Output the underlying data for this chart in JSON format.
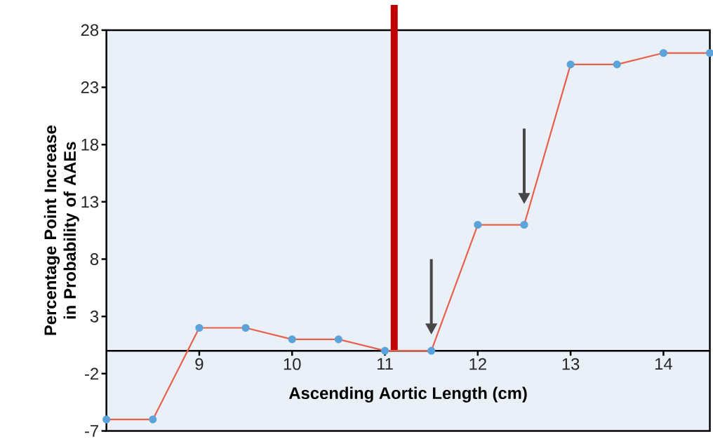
{
  "chart_data": {
    "type": "line",
    "xlabel": "Ascending Aortic Length (cm)",
    "ylabel": "Percentage Point Increase in Probability of AAEs",
    "x": [
      8,
      8.5,
      9,
      9.5,
      10,
      10.5,
      11,
      11.5,
      12,
      12.5,
      13,
      13.5,
      14,
      14.5
    ],
    "series": [
      {
        "color": "#e8604c",
        "values": [
          -6,
          -6,
          2,
          2,
          1,
          1,
          0,
          0,
          11,
          11,
          25,
          25,
          26,
          26
        ]
      }
    ],
    "marker": "circle",
    "line_style": "solid",
    "xlim": [
      8,
      14.5
    ],
    "ylim": [
      -7,
      28
    ],
    "xticks": [
      9,
      10,
      11,
      12,
      13,
      14
    ],
    "yticks": [
      -7,
      -2,
      3,
      8,
      13,
      18,
      23,
      28
    ],
    "ref_lines": [
      {
        "axis": "x",
        "value": 11.1,
        "color": "#c00000"
      }
    ]
  }
}
